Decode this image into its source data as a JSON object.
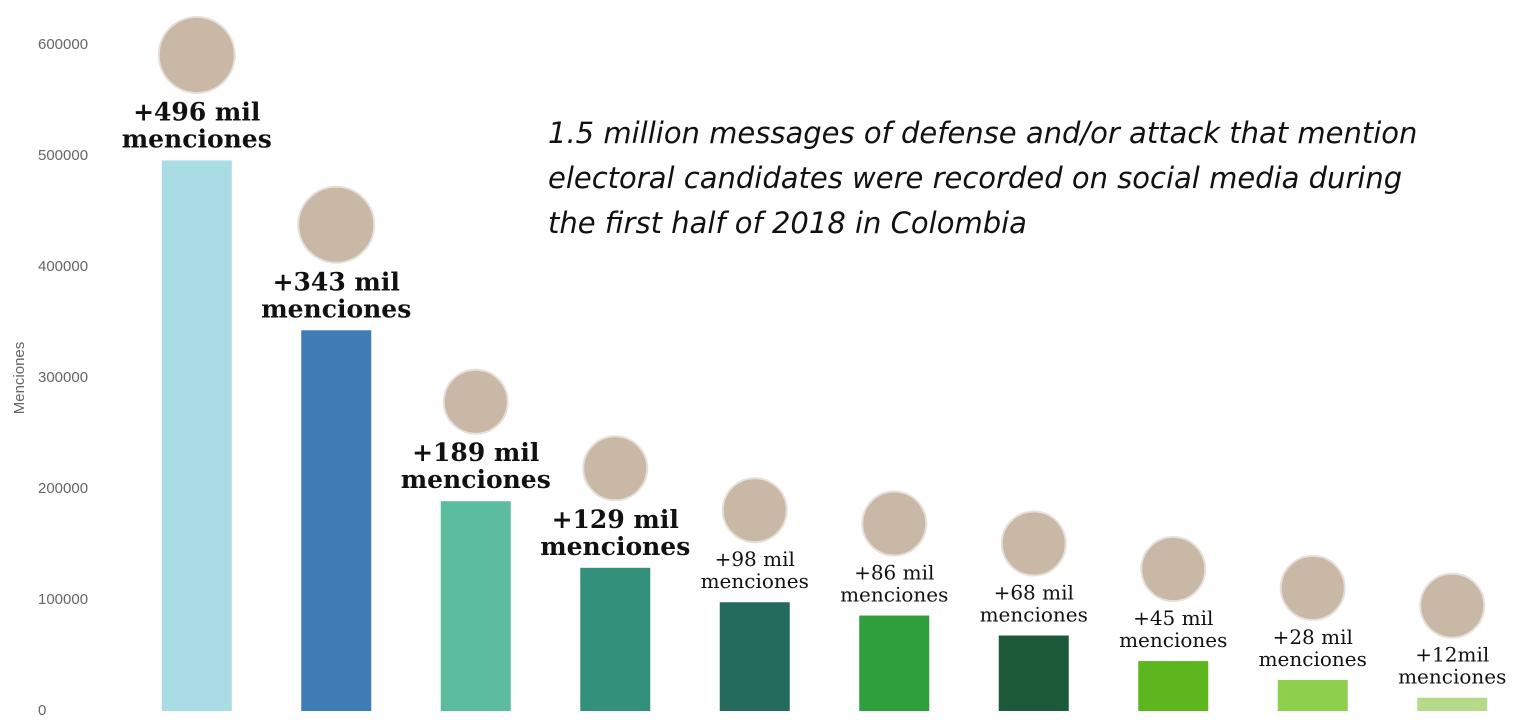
{
  "chart_data": {
    "type": "bar",
    "y_label": "Menciones",
    "annotation": [
      "1.5 million messages of defense and/or attack that mention",
      "electoral candidates were recorded on social media during",
      "the first half of 2018 in Colombia"
    ],
    "categories": [
      null,
      null,
      null,
      null,
      null,
      null,
      null,
      null,
      null,
      null
    ],
    "values": [
      496000,
      343000,
      189000,
      129000,
      98000,
      86000,
      68000,
      45000,
      28000,
      12000
    ],
    "value_labels": [
      "+496 mil menciones",
      "+343 mil menciones",
      "+189 mil menciones",
      "+129 mil menciones",
      "+98 mil menciones",
      "+86 mil menciones",
      "+68 mil menciones",
      "+45 mil menciones",
      "+28 mil menciones",
      "+12mil menciones"
    ],
    "colors": [
      "#a9dce4",
      "#3f7cb6",
      "#5bbd9d",
      "#33907b",
      "#246b5e",
      "#2f9e3c",
      "#1d5a3a",
      "#5db61e",
      "#8dd04d",
      "#b4da8a"
    ],
    "ylim": [
      0,
      600000
    ],
    "yticks": [
      0,
      100000,
      200000,
      300000,
      400000,
      500000,
      600000
    ],
    "grid": false
  }
}
